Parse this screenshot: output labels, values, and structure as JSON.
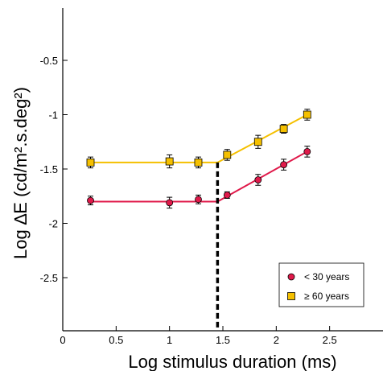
{
  "chart_data": {
    "type": "line",
    "title": "",
    "xlabel": "Log stimulus duration (ms)",
    "ylabel": "Log ∆E (cd/m².s.deg²)",
    "xlim": [
      0,
      3.0
    ],
    "ylim": [
      -2.5,
      0.25
    ],
    "xticks": [
      0,
      0.5,
      1,
      1.5,
      2,
      2.5
    ],
    "xtick_labels": [
      "0",
      "0.5",
      "1",
      "1.5",
      "2",
      "2.5"
    ],
    "yticks": [
      -0.5,
      -1,
      -1.5,
      -2,
      -2.5
    ],
    "ytick_labels": [
      "-0.5",
      "-1",
      "-1.5",
      "-2",
      "-2.5"
    ],
    "grid": false,
    "legend": "bottom-right",
    "series": [
      {
        "name": "< 30 years",
        "marker": "circle",
        "color": "#e0194a",
        "x": [
          0.26,
          1.0,
          1.27,
          1.54,
          1.83,
          2.07,
          2.29
        ],
        "y": [
          -1.79,
          -1.81,
          -1.78,
          -1.74,
          -1.6,
          -1.46,
          -1.34
        ],
        "err": [
          0.04,
          0.05,
          0.04,
          0.03,
          0.05,
          0.05,
          0.05
        ],
        "fit": {
          "x": [
            0.26,
            1.45,
            2.29
          ],
          "y": [
            -1.8,
            -1.8,
            -1.34
          ]
        }
      },
      {
        "name": "≥ 60 years",
        "marker": "square",
        "color": "#f5c000",
        "x": [
          0.26,
          1.0,
          1.27,
          1.54,
          1.83,
          2.07,
          2.29
        ],
        "y": [
          -1.44,
          -1.43,
          -1.44,
          -1.37,
          -1.25,
          -1.13,
          -1.0
        ],
        "err": [
          0.05,
          0.06,
          0.05,
          0.05,
          0.06,
          0.04,
          0.05
        ],
        "fit": {
          "x": [
            0.26,
            1.45,
            2.29
          ],
          "y": [
            -1.44,
            -1.44,
            -1.0
          ]
        }
      }
    ],
    "annotations": [
      {
        "type": "vline-dashed",
        "x": 1.45,
        "y_top": -1.44
      }
    ]
  }
}
